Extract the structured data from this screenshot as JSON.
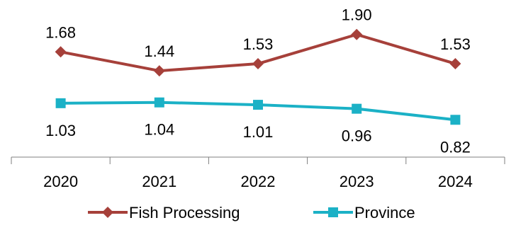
{
  "chart_data": {
    "type": "line",
    "title": "",
    "xlabel": "",
    "ylabel": "",
    "categories": [
      "2020",
      "2021",
      "2022",
      "2023",
      "2024"
    ],
    "ylim": [
      0.5,
      2.05
    ],
    "grid": false,
    "legend_position": "bottom",
    "series": [
      {
        "name": "Fish Processing",
        "values": [
          1.68,
          1.44,
          1.53,
          1.9,
          1.53
        ],
        "labels": [
          "1.68",
          "1.44",
          "1.53",
          "1.90",
          "1.53"
        ],
        "color": "#A6403A",
        "marker": "diamond",
        "label_position": "above"
      },
      {
        "name": "Province",
        "values": [
          1.03,
          1.04,
          1.01,
          0.96,
          0.82
        ],
        "labels": [
          "1.03",
          "1.04",
          "1.01",
          "0.96",
          "0.82"
        ],
        "color": "#1BB1C6",
        "marker": "square",
        "label_position": "below"
      }
    ]
  }
}
